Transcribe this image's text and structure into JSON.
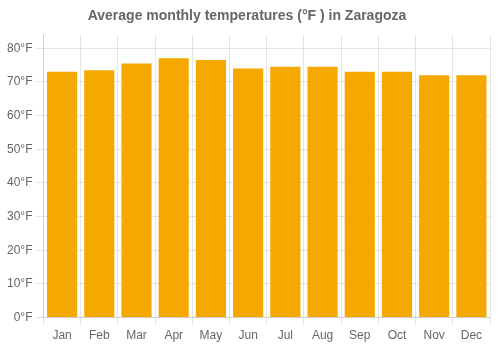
{
  "chart_data": {
    "type": "bar",
    "title": "Average monthly temperatures (°F ) in Zaragoza",
    "categories": [
      "Jan",
      "Feb",
      "Mar",
      "Apr",
      "May",
      "Jun",
      "Jul",
      "Aug",
      "Sep",
      "Oct",
      "Nov",
      "Dec"
    ],
    "values": [
      73.0,
      73.5,
      75.5,
      77.0,
      76.5,
      74.0,
      74.5,
      74.5,
      73.0,
      73.0,
      72.0,
      72.0
    ],
    "color": "#F5A800",
    "ylim": [
      0,
      84
    ],
    "yticks": [
      {
        "value": 0,
        "label": "0°F"
      },
      {
        "value": 10,
        "label": "10°F"
      },
      {
        "value": 20,
        "label": "20°F"
      },
      {
        "value": 30,
        "label": "30°F"
      },
      {
        "value": 40,
        "label": "40°F"
      },
      {
        "value": 50,
        "label": "50°F"
      },
      {
        "value": 60,
        "label": "60°F"
      },
      {
        "value": 70,
        "label": "70°F"
      },
      {
        "value": 80,
        "label": "80°F"
      }
    ],
    "grid": true
  }
}
